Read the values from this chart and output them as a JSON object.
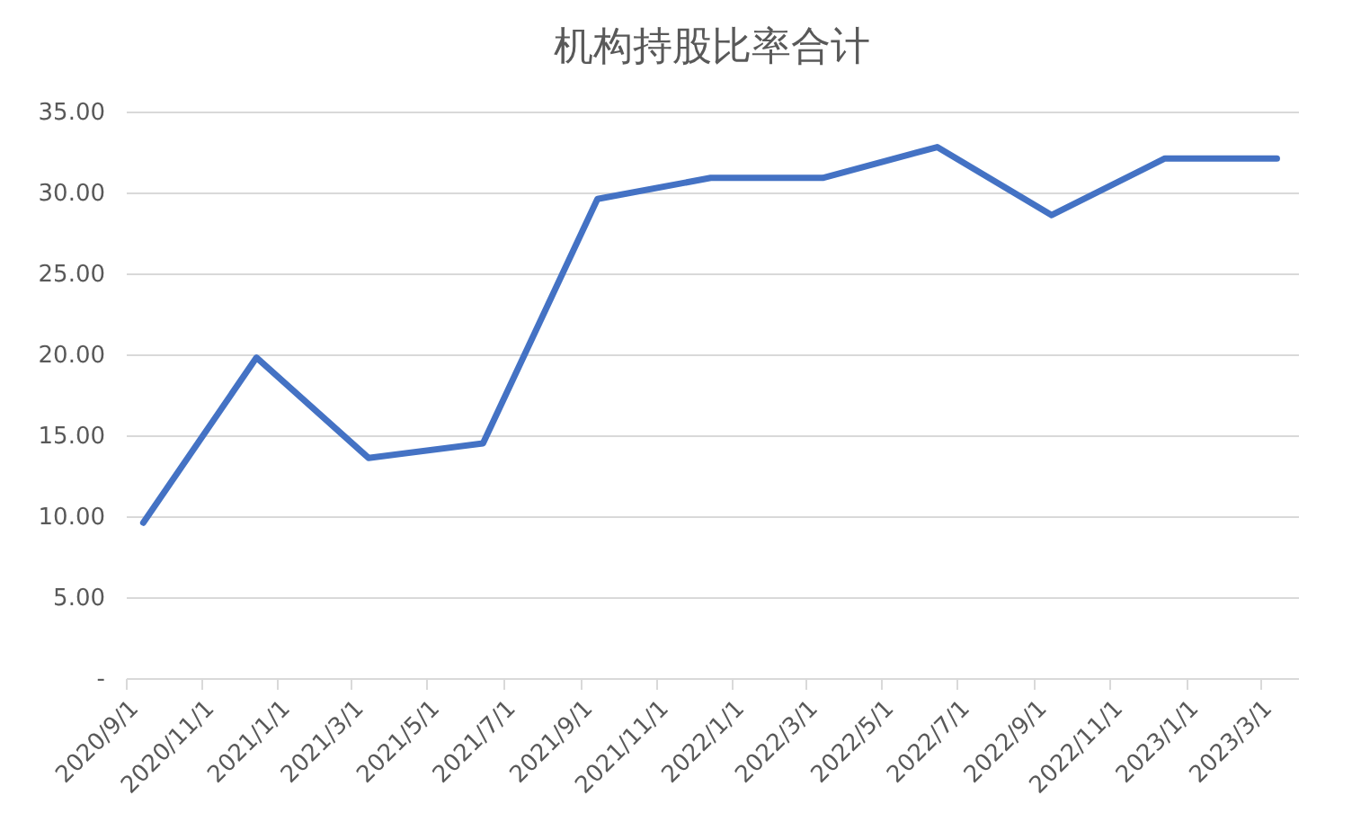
{
  "chart_data": {
    "type": "line",
    "title": "机构持股比率合计",
    "x": [
      "2020-09-15",
      "2020-12-15",
      "2021-03-15",
      "2021-06-15",
      "2021-09-15",
      "2021-12-15",
      "2022-03-15",
      "2022-06-15",
      "2022-09-15",
      "2022-12-15",
      "2023-03-15"
    ],
    "series": [
      {
        "color": "#4472c4",
        "values": [
          9.6,
          19.8,
          13.6,
          14.5,
          29.6,
          30.9,
          30.9,
          32.8,
          28.6,
          32.1,
          32.1
        ]
      }
    ],
    "xlim": [
      "2020-09-01",
      "2023-04-01"
    ],
    "xticks": [
      {
        "value": "2020-09-01",
        "label": "2020/9/1"
      },
      {
        "value": "2020-11-01",
        "label": "2020/11/1"
      },
      {
        "value": "2021-01-01",
        "label": "2021/1/1"
      },
      {
        "value": "2021-03-01",
        "label": "2021/3/1"
      },
      {
        "value": "2021-05-01",
        "label": "2021/5/1"
      },
      {
        "value": "2021-07-01",
        "label": "2021/7/1"
      },
      {
        "value": "2021-09-01",
        "label": "2021/9/1"
      },
      {
        "value": "2021-11-01",
        "label": "2021/11/1"
      },
      {
        "value": "2022-01-01",
        "label": "2022/1/1"
      },
      {
        "value": "2022-03-01",
        "label": "2022/3/1"
      },
      {
        "value": "2022-05-01",
        "label": "2022/5/1"
      },
      {
        "value": "2022-07-01",
        "label": "2022/7/1"
      },
      {
        "value": "2022-09-01",
        "label": "2022/9/1"
      },
      {
        "value": "2022-11-01",
        "label": "2022/11/1"
      },
      {
        "value": "2023-01-01",
        "label": "2023/1/1"
      },
      {
        "value": "2023-03-01",
        "label": "2023/3/1"
      }
    ],
    "ylim": [
      0,
      35
    ],
    "yticks": [
      {
        "value": 0,
        "label": "-"
      },
      {
        "value": 5,
        "label": "5.00"
      },
      {
        "value": 10,
        "label": "10.00"
      },
      {
        "value": 15,
        "label": "15.00"
      },
      {
        "value": 20,
        "label": "20.00"
      },
      {
        "value": 25,
        "label": "25.00"
      },
      {
        "value": 30,
        "label": "30.00"
      },
      {
        "value": 35,
        "label": "35.00"
      }
    ],
    "grid": "y",
    "marker": "none",
    "line_style": "solid"
  }
}
